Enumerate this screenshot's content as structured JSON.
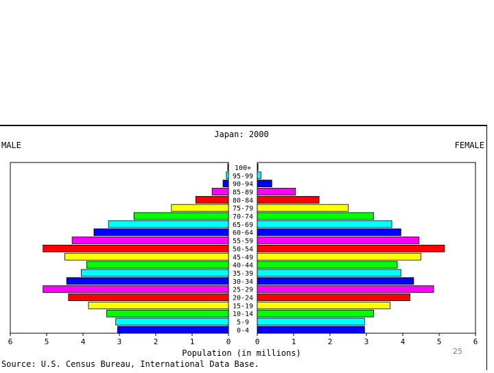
{
  "slide_number": "25",
  "chart_data": {
    "type": "bar",
    "title": "Japan: 2000",
    "left_label": "MALE",
    "right_label": "FEMALE",
    "xlabel": "Population (in millions)",
    "source": "Source: U.S. Census Bureau, International Data Base.",
    "xlim": [
      0,
      6
    ],
    "x_ticks": [
      "6",
      "5",
      "4",
      "3",
      "2",
      "1",
      "0",
      "0",
      "1",
      "2",
      "3",
      "4",
      "5",
      "6"
    ],
    "categories": [
      "100+",
      "95-99",
      "90-94",
      "85-89",
      "80-84",
      "75-79",
      "70-74",
      "65-69",
      "60-64",
      "55-59",
      "50-54",
      "45-49",
      "40-44",
      "35-39",
      "30-34",
      "25-29",
      "20-24",
      "15-19",
      "10-14",
      "5-9",
      "0-4"
    ],
    "series": [
      {
        "name": "MALE",
        "values": [
          0.02,
          0.06,
          0.15,
          0.45,
          0.9,
          1.57,
          2.6,
          3.3,
          3.7,
          4.3,
          5.1,
          4.5,
          3.9,
          4.05,
          4.45,
          5.1,
          4.4,
          3.85,
          3.35,
          3.1,
          3.05
        ]
      },
      {
        "name": "FEMALE",
        "values": [
          0.02,
          0.1,
          0.4,
          1.05,
          1.7,
          2.5,
          3.2,
          3.7,
          3.95,
          4.45,
          5.15,
          4.5,
          3.85,
          3.95,
          4.3,
          4.85,
          4.2,
          3.65,
          3.2,
          2.95,
          2.95
        ]
      }
    ],
    "age_colors": [
      "#000000",
      "#00ffff",
      "#0000ff",
      "#ff00ff",
      "#ff0000",
      "#ffff00",
      "#00ff00",
      "#00ffff",
      "#0000ff",
      "#ff00ff",
      "#ff0000",
      "#ffff00",
      "#00ff00",
      "#00ffff",
      "#0000ff",
      "#ff00ff",
      "#ff0000",
      "#ffff00",
      "#00ff00",
      "#00ffff",
      "#0000ff"
    ],
    "grid": false,
    "legend": "none"
  }
}
